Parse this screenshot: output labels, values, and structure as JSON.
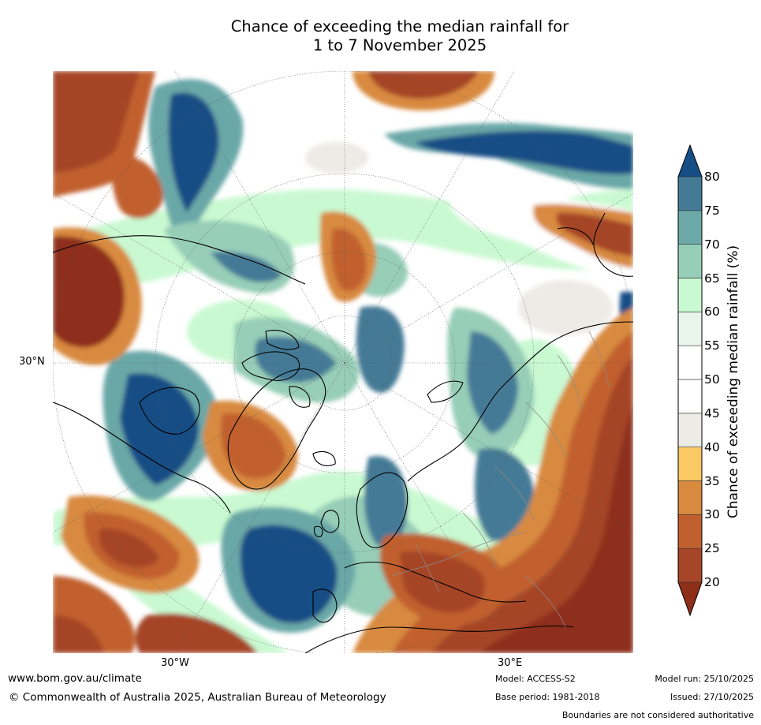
{
  "title_line1": "Chance of exceeding the median rainfall for",
  "title_line2": "1 to 7 November 2025",
  "axis_labels": {
    "lat_30n": "30°N",
    "lon_30w": "30°W",
    "lon_30e": "30°E"
  },
  "colorbar": {
    "label": "Chance of exceeding median rainfall (%)",
    "ticks": [
      "20",
      "25",
      "30",
      "35",
      "40",
      "45",
      "50",
      "55",
      "60",
      "65",
      "70",
      "75",
      "80"
    ],
    "colors": {
      "below_20": "#8e2f1a",
      "20_25": "#a64527",
      "25_30": "#c1602f",
      "30_35": "#d88a3f",
      "35_40": "#fbc963",
      "40_45": "#ecebe6",
      "45_50": "#ffffff",
      "50_55": "#ffffff",
      "55_60": "#e9f5ea",
      "60_65": "#c9f9d1",
      "65_70": "#97ceb8",
      "70_75": "#6ba8a7",
      "75_80": "#457a96",
      "above_80": "#174d85"
    }
  },
  "footer": {
    "website": "www.bom.gov.au/climate",
    "copyright": "© Commonwealth of Australia 2025, Australian Bureau of Meteorology",
    "model": "Model: ACCESS-S2",
    "base_period": "Base period: 1981-2018",
    "model_run": "Model run: 25/10/2025",
    "issued": "Issued: 27/10/2025",
    "disclaimer": "Boundaries are not considered authoritative"
  }
}
